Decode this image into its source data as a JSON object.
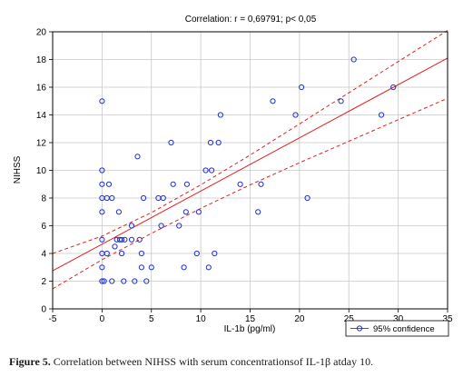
{
  "chart_data": {
    "type": "scatter",
    "title": "Correlation: r = 0,69791; p< 0,05",
    "xlabel": "IL-1b  (pg/ml)",
    "ylabel": "NIHSS",
    "xlim": [
      -5,
      35
    ],
    "ylim": [
      0,
      20
    ],
    "x_ticks": [
      "-5",
      "0",
      "5",
      "10",
      "15",
      "20",
      "25",
      "30",
      "35"
    ],
    "y_ticks": [
      "0",
      "2",
      "4",
      "6",
      "8",
      "10",
      "12",
      "14",
      "16",
      "18",
      "20"
    ],
    "grid": true,
    "legend_position": "bottom-right",
    "legend_label": "95% confidence",
    "fit_line": {
      "x": [
        -5,
        35
      ],
      "y": [
        2.75,
        18.1
      ]
    },
    "confidence_upper": {
      "x": [
        -5,
        0,
        5,
        10,
        15,
        20,
        25,
        30,
        35
      ],
      "y": [
        4.0,
        5.25,
        6.95,
        8.95,
        11.1,
        13.35,
        15.6,
        17.85,
        20.1
      ]
    },
    "confidence_lower": {
      "x": [
        -5,
        0,
        5,
        10,
        15,
        20,
        25,
        30,
        35
      ],
      "y": [
        1.45,
        3.55,
        5.45,
        7.25,
        8.95,
        10.55,
        12.1,
        13.65,
        15.2
      ]
    },
    "points": [
      {
        "x": 0,
        "y": 15
      },
      {
        "x": 0,
        "y": 10
      },
      {
        "x": 0,
        "y": 9
      },
      {
        "x": 0,
        "y": 8
      },
      {
        "x": 0,
        "y": 7
      },
      {
        "x": 0,
        "y": 5
      },
      {
        "x": 0,
        "y": 4
      },
      {
        "x": 0,
        "y": 3
      },
      {
        "x": 0,
        "y": 2
      },
      {
        "x": 0.2,
        "y": 2
      },
      {
        "x": 0.5,
        "y": 4
      },
      {
        "x": 0.5,
        "y": 8
      },
      {
        "x": 0.7,
        "y": 9
      },
      {
        "x": 1,
        "y": 8
      },
      {
        "x": 1,
        "y": 2
      },
      {
        "x": 1.3,
        "y": 4.5
      },
      {
        "x": 1.5,
        "y": 5
      },
      {
        "x": 1.7,
        "y": 7
      },
      {
        "x": 1.8,
        "y": 5
      },
      {
        "x": 2,
        "y": 5
      },
      {
        "x": 2,
        "y": 4
      },
      {
        "x": 2.2,
        "y": 2
      },
      {
        "x": 2.3,
        "y": 5
      },
      {
        "x": 3,
        "y": 6
      },
      {
        "x": 3,
        "y": 5
      },
      {
        "x": 3.3,
        "y": 2
      },
      {
        "x": 3.6,
        "y": 11
      },
      {
        "x": 3.8,
        "y": 5
      },
      {
        "x": 4,
        "y": 4
      },
      {
        "x": 4,
        "y": 3
      },
      {
        "x": 4.2,
        "y": 8
      },
      {
        "x": 4.5,
        "y": 2
      },
      {
        "x": 5,
        "y": 3
      },
      {
        "x": 5.7,
        "y": 8
      },
      {
        "x": 6,
        "y": 6
      },
      {
        "x": 6.2,
        "y": 8
      },
      {
        "x": 7,
        "y": 12
      },
      {
        "x": 7.2,
        "y": 9
      },
      {
        "x": 7.8,
        "y": 6
      },
      {
        "x": 8.3,
        "y": 3
      },
      {
        "x": 8.5,
        "y": 7
      },
      {
        "x": 8.6,
        "y": 9
      },
      {
        "x": 9.6,
        "y": 4
      },
      {
        "x": 9.8,
        "y": 7
      },
      {
        "x": 10.5,
        "y": 10
      },
      {
        "x": 10.8,
        "y": 3
      },
      {
        "x": 11,
        "y": 12
      },
      {
        "x": 11.1,
        "y": 10
      },
      {
        "x": 11.4,
        "y": 4
      },
      {
        "x": 11.8,
        "y": 12
      },
      {
        "x": 12,
        "y": 14
      },
      {
        "x": 14,
        "y": 9
      },
      {
        "x": 15.8,
        "y": 7
      },
      {
        "x": 16.1,
        "y": 9
      },
      {
        "x": 17.3,
        "y": 15
      },
      {
        "x": 19.6,
        "y": 14
      },
      {
        "x": 20.2,
        "y": 16
      },
      {
        "x": 20.8,
        "y": 8
      },
      {
        "x": 24.2,
        "y": 15
      },
      {
        "x": 25.5,
        "y": 18
      },
      {
        "x": 28.3,
        "y": 14
      },
      {
        "x": 29.5,
        "y": 16
      }
    ]
  },
  "caption": {
    "label": "Figure 5.",
    "text": " Correlation between NIHSS with serum concentrationsof IL-1β atday 10."
  },
  "colors": {
    "points": "#1f2fd6",
    "fit": "#e12020",
    "grid": "#c8c8c8"
  }
}
